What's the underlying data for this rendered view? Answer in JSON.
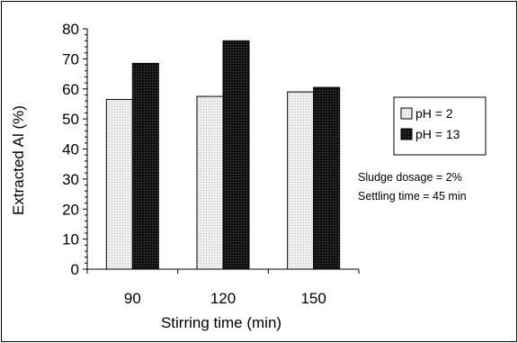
{
  "chart_data": {
    "type": "bar",
    "title": "",
    "xlabel": "Stirring time (min)",
    "ylabel": "Extracted Al (%)",
    "categories": [
      "90",
      "120",
      "150"
    ],
    "series": [
      {
        "name": "pH = 2",
        "values": [
          56.5,
          57.5,
          59
        ],
        "color": "#e6e6e6"
      },
      {
        "name": "pH = 13",
        "values": [
          68.5,
          76,
          60.5
        ],
        "color": "#1a1a1a"
      }
    ],
    "ylim": [
      0,
      80
    ],
    "yticks": [
      "0",
      "10",
      "20",
      "30",
      "40",
      "50",
      "60",
      "70",
      "80"
    ],
    "grid": false,
    "legend": "right"
  },
  "notes": [
    "Sludge dosage = 2%",
    "Settling time = 45 min"
  ]
}
